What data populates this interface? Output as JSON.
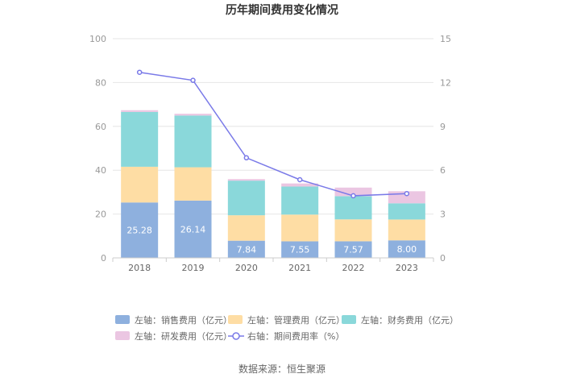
{
  "chart_data": {
    "type": "bar",
    "stacked": true,
    "title": "历年期间费用变化情况",
    "categories": [
      "2018",
      "2019",
      "2020",
      "2021",
      "2022",
      "2023"
    ],
    "left_axis": {
      "ylim": [
        0,
        100
      ],
      "ticks": [
        "0",
        "20",
        "40",
        "60",
        "80",
        "100"
      ]
    },
    "right_axis": {
      "ylim": [
        0,
        15
      ],
      "ticks": [
        "0",
        "3",
        "6",
        "9",
        "12",
        "15"
      ]
    },
    "series": [
      {
        "name": "左轴：销售费用（亿元）",
        "type": "bar",
        "color": "#8eb0de",
        "values": [
          25.28,
          26.14,
          7.84,
          7.55,
          7.57,
          8.0
        ],
        "labels": [
          "25.28",
          "26.14",
          "7.84",
          "7.55",
          "7.57",
          "8.00"
        ]
      },
      {
        "name": "左轴：管理费用（亿元）",
        "type": "bar",
        "color": "#fedda4",
        "values": [
          16.3,
          15.2,
          11.6,
          12.2,
          10.0,
          9.5
        ]
      },
      {
        "name": "左轴：财务费用（亿元）",
        "type": "bar",
        "color": "#8ad8da",
        "values": [
          25.0,
          23.6,
          15.8,
          12.8,
          10.6,
          7.4
        ]
      },
      {
        "name": "左轴：研发费用（亿元）",
        "type": "bar",
        "color": "#ebc6e2",
        "values": [
          0.8,
          0.8,
          0.7,
          1.4,
          3.9,
          5.5
        ]
      },
      {
        "name": "右轴：期间费用率（%）",
        "type": "line",
        "axis": "right",
        "color": "#7a7ae8",
        "values": [
          12.7,
          12.15,
          6.85,
          5.35,
          4.25,
          4.4
        ]
      }
    ],
    "source": "数据来源：恒生聚源"
  }
}
